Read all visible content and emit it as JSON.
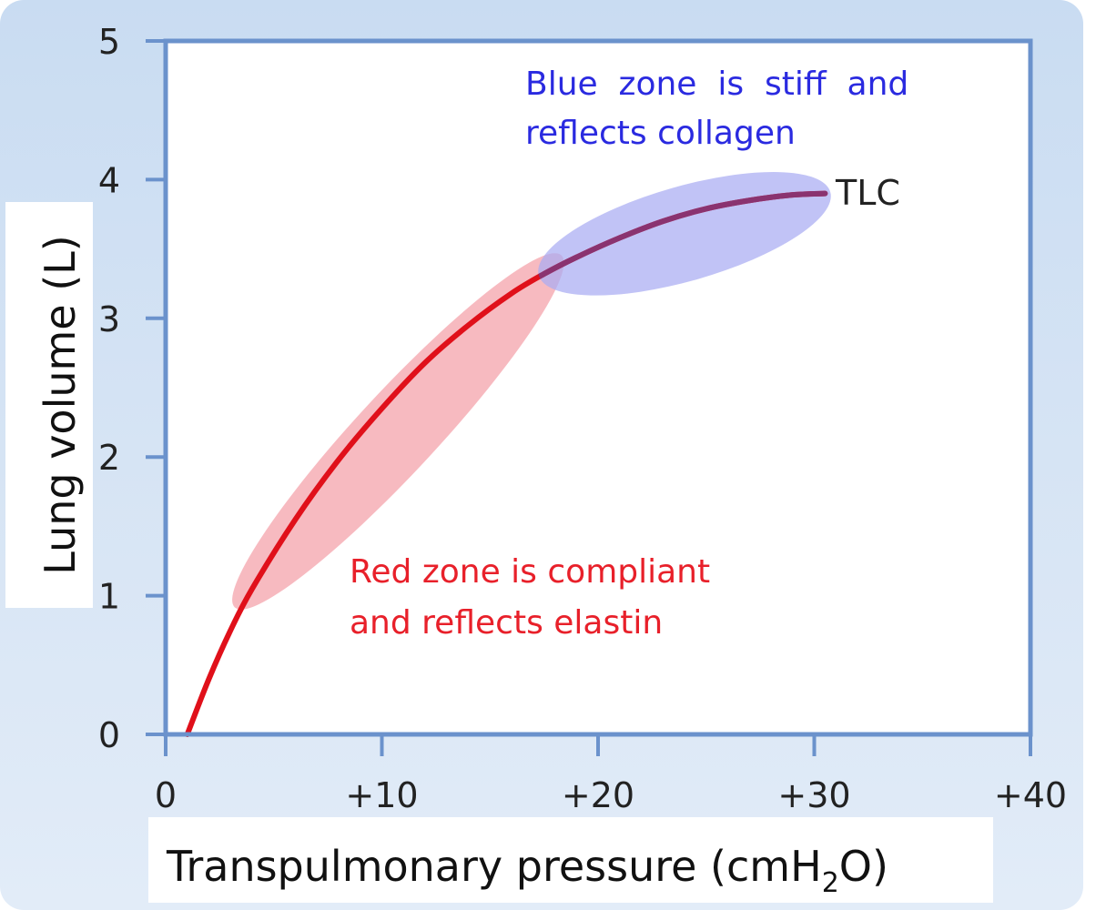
{
  "chart_data": {
    "type": "line",
    "xlabel": "Transpulmonary pressure (cmH",
    "xlabel_subscript": "2",
    "xlabel_suffix": "O)",
    "ylabel": "Lung volume (L)",
    "xlim": [
      0,
      40
    ],
    "ylim": [
      0,
      5
    ],
    "x_ticks": [
      0,
      10,
      20,
      30,
      40
    ],
    "x_tick_labels": [
      "0",
      "+10",
      "+20",
      "+30",
      "+40"
    ],
    "y_ticks": [
      0,
      1,
      2,
      3,
      4,
      5
    ],
    "y_tick_labels": [
      "0",
      "1",
      "2",
      "3",
      "4",
      "5"
    ],
    "grid": false,
    "series": [
      {
        "color": "#e0101a",
        "x": [
          1.0,
          2.0,
          3.0,
          4.0,
          6.0,
          8.0,
          10.0,
          12.0,
          14.0,
          16.0,
          17.5,
          19.0,
          21.0,
          23.0,
          25.0,
          27.0,
          29.0,
          30.5
        ],
        "y": [
          0.0,
          0.4,
          0.75,
          1.05,
          1.55,
          1.98,
          2.35,
          2.68,
          2.95,
          3.18,
          3.32,
          3.44,
          3.58,
          3.7,
          3.79,
          3.85,
          3.89,
          3.9
        ]
      }
    ],
    "zones": [
      {
        "name": "red",
        "color": "#f4a0a8",
        "x_range": [
          4.0,
          17.5
        ]
      },
      {
        "name": "blue",
        "color": "#a9acf2",
        "x_range": [
          17.5,
          30.5
        ]
      }
    ],
    "annotations": {
      "blue_line1": "Blue  zone  is  stiff  and",
      "blue_line2": "reflects collagen",
      "blue_color": "#2a2ae0",
      "red_line1": "Red zone is compliant",
      "red_line2": "and reflects elastin",
      "red_color": "#e8202a",
      "tlc": "TLC"
    },
    "colors": {
      "axis": "#6b92cc",
      "blue_tint_overlay": "#7a3a80"
    }
  }
}
